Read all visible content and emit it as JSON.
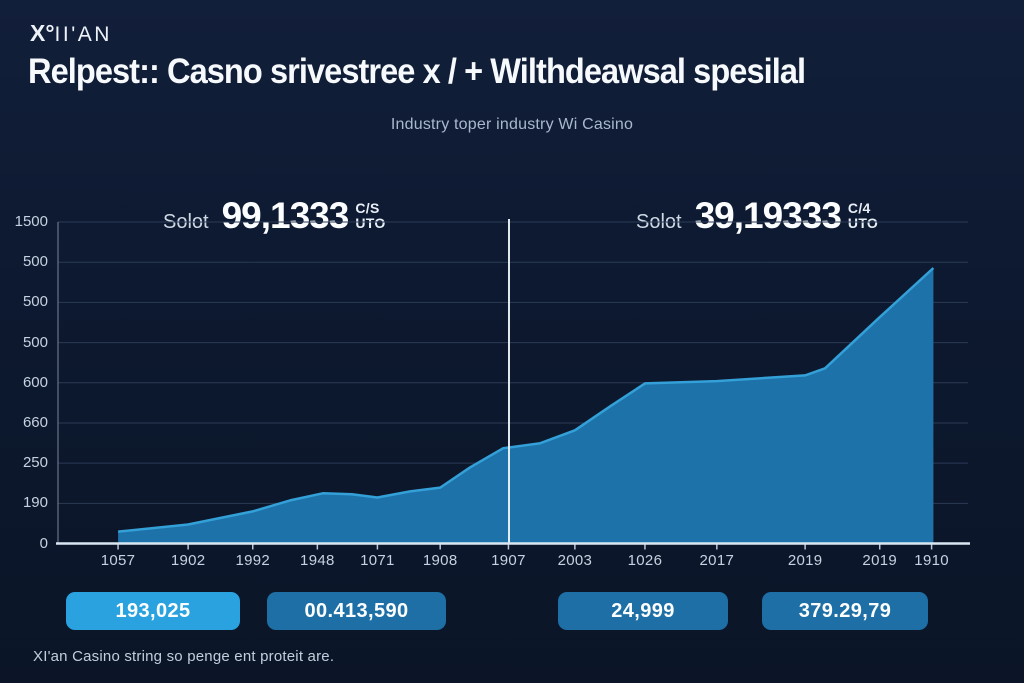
{
  "brand": {
    "logo_x": "X°",
    "logo_rest": "II'AN"
  },
  "header": {
    "title": "Relpest:: Casno srivestree x / + Wilthdeawsal spesilal",
    "subtitle": "Industry toper industry Wi Casino"
  },
  "stats": {
    "left": {
      "label": "Solot",
      "value": "99,1333",
      "unit_top": "C/S",
      "unit_bottom": "UTO"
    },
    "right": {
      "label": "Solot",
      "value": "39,19333",
      "unit_top": "C/4",
      "unit_bottom": "UTO"
    }
  },
  "chart_data": {
    "type": "area",
    "title": "Relpest:: Casno srivestree x / + Wilthdeawsal spesilal",
    "legend": [],
    "grid": "horizontal",
    "x_tick_labels": [
      "1057",
      "1902",
      "1992",
      "1948",
      "1071",
      "1908",
      "1907",
      "2003",
      "1026",
      "2017",
      "2019",
      "2019",
      "1910"
    ],
    "x_tick_fx": [
      0.066,
      0.143,
      0.214,
      0.285,
      0.351,
      0.42,
      0.495,
      0.568,
      0.645,
      0.724,
      0.821,
      0.903,
      0.96
    ],
    "y_tick_labels": [
      "1500",
      "500",
      "500",
      "500",
      "600",
      "660",
      "250",
      "190",
      "0"
    ],
    "y_axis_assumed_range": [
      0,
      1500
    ],
    "approx_values_at_ticks_y_units": [
      56,
      89,
      150,
      225,
      215,
      261,
      450,
      528,
      747,
      758,
      785,
      1056,
      1286
    ],
    "series": [
      {
        "name": "casino-withdrawals-area",
        "points": [
          [
            0.066,
            0.037
          ],
          [
            0.143,
            0.059
          ],
          [
            0.214,
            0.1
          ],
          [
            0.255,
            0.134
          ],
          [
            0.291,
            0.156
          ],
          [
            0.323,
            0.153
          ],
          [
            0.351,
            0.143
          ],
          [
            0.387,
            0.162
          ],
          [
            0.42,
            0.174
          ],
          [
            0.453,
            0.237
          ],
          [
            0.489,
            0.296
          ],
          [
            0.53,
            0.312
          ],
          [
            0.568,
            0.352
          ],
          [
            0.607,
            0.427
          ],
          [
            0.645,
            0.498
          ],
          [
            0.724,
            0.505
          ],
          [
            0.821,
            0.523
          ],
          [
            0.843,
            0.545
          ],
          [
            0.903,
            0.704
          ],
          [
            0.962,
            0.857
          ]
        ]
      }
    ],
    "divider_fx": 0.4956,
    "colors": {
      "fill": "#1e72aa",
      "stroke": "#34a0d8",
      "grid": "#2b3a54",
      "axis": "#d9e7f3",
      "axis_left": "#8a99b0",
      "divider": "#eef4f9",
      "background": "#0d1930"
    }
  },
  "cards": [
    {
      "value": "193,025",
      "variant": "bright"
    },
    {
      "value": "00.413,590",
      "variant": "normal"
    },
    {
      "value": "24,999",
      "variant": "normal"
    },
    {
      "value": "379.29,79",
      "variant": "normal"
    }
  ],
  "footer": {
    "caption": "XI'an Casino string so penge ent proteit are."
  }
}
